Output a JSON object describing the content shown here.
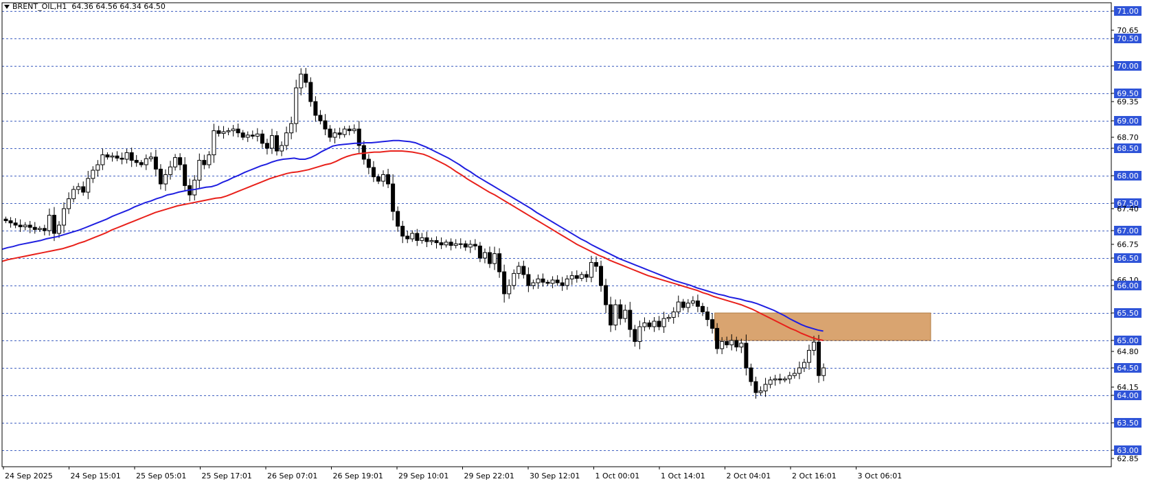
{
  "header": {
    "menu_icon": "triangle-down-icon",
    "symbol_line": "BRENT_OIL,H1",
    "ohlc_line": "64.36 64.56 64.34 64.50"
  },
  "colors": {
    "background": "#ffffff",
    "grid_line": "#4060c0",
    "bull_candle": "#ffffff",
    "bear_candle": "#000000",
    "ma_blue": "#1f1fe0",
    "ma_red": "#e8201a",
    "zone": "#d9a470",
    "price_badge": "#2f54d8"
  },
  "chart_data": {
    "type": "candlestick",
    "title": "BRENT_OIL,H1",
    "ylim": [
      62.7,
      71.15
    ],
    "grid": true,
    "price_levels_highlighted": [
      71.0,
      70.5,
      70.0,
      69.5,
      69.0,
      68.5,
      68.0,
      67.5,
      67.0,
      66.5,
      66.0,
      65.5,
      65.0,
      64.5,
      64.0,
      63.5,
      63.0
    ],
    "y_tick_labels": [
      "71.00",
      "70.65",
      "70.50",
      "70.00",
      "69.50",
      "69.35",
      "69.00",
      "68.70",
      "68.50",
      "68.00",
      "67.50",
      "67.40",
      "67.00",
      "66.75",
      "66.50",
      "66.10",
      "66.00",
      "65.50",
      "65.00",
      "64.80",
      "64.50",
      "64.15",
      "64.00",
      "63.50",
      "63.00",
      "62.85"
    ],
    "x_tick_labels": [
      "24 Sep 2025",
      "24 Sep 15:01",
      "25 Sep 05:01",
      "25 Sep 17:01",
      "26 Sep 07:01",
      "26 Sep 19:01",
      "29 Sep 10:01",
      "29 Sep 22:01",
      "30 Sep 12:01",
      "1 Oct 00:01",
      "1 Oct 14:01",
      "2 Oct 04:01",
      "2 Oct 16:01",
      "3 Oct 06:01"
    ],
    "candles_close": [
      67.18,
      67.14,
      67.1,
      67.07,
      67.1,
      67.06,
      67.02,
      67.04,
      67.0,
      67.28,
      66.95,
      67.1,
      67.4,
      67.58,
      67.75,
      67.8,
      67.7,
      67.95,
      68.1,
      68.2,
      68.38,
      68.34,
      68.36,
      68.32,
      68.3,
      68.42,
      68.28,
      68.24,
      68.2,
      68.31,
      68.34,
      68.12,
      67.85,
      68.02,
      68.16,
      68.33,
      68.2,
      67.82,
      67.65,
      67.92,
      68.28,
      68.2,
      68.38,
      68.82,
      68.77,
      68.8,
      68.82,
      68.85,
      68.78,
      68.7,
      68.74,
      68.72,
      68.76,
      68.59,
      68.5,
      68.73,
      68.45,
      68.55,
      68.78,
      68.95,
      69.6,
      69.85,
      69.7,
      69.35,
      69.1,
      69.0,
      68.85,
      68.7,
      68.78,
      68.75,
      68.85,
      68.82,
      68.85,
      68.55,
      68.3,
      68.15,
      67.98,
      67.9,
      68.02,
      67.85,
      67.35,
      67.08,
      66.9,
      66.85,
      66.95,
      66.82,
      66.87,
      66.8,
      66.82,
      66.78,
      66.74,
      66.79,
      66.73,
      66.76,
      66.76,
      66.7,
      66.75,
      66.72,
      66.5,
      66.6,
      66.4,
      66.58,
      66.25,
      65.85,
      66.0,
      66.22,
      66.35,
      66.2,
      66.0,
      66.05,
      66.12,
      66.06,
      66.04,
      66.1,
      66.05,
      66.0,
      66.12,
      66.18,
      66.13,
      66.2,
      66.15,
      66.42,
      66.35,
      66.0,
      65.65,
      65.28,
      65.65,
      65.4,
      65.55,
      65.2,
      64.98,
      65.25,
      65.32,
      65.25,
      65.35,
      65.25,
      65.4,
      65.42,
      65.52,
      65.7,
      65.6,
      65.68,
      65.72,
      65.62,
      65.52,
      65.38,
      65.22,
      64.85,
      64.98,
      64.92,
      65.0,
      64.88,
      64.95,
      64.5,
      64.25,
      64.05,
      64.08,
      64.2,
      64.28,
      64.3,
      64.28,
      64.3,
      64.36,
      64.4,
      64.5,
      64.6,
      64.82,
      64.97,
      64.36,
      64.5
    ],
    "series": [
      {
        "values": [
          66.66,
          66.69,
          66.71,
          66.74,
          66.76,
          66.78,
          66.8,
          66.82,
          66.85,
          66.87,
          66.89,
          66.92,
          66.95,
          66.98,
          67.01,
          67.05,
          67.09,
          67.13,
          67.17,
          67.21,
          67.26,
          67.3,
          67.34,
          67.38,
          67.43,
          67.47,
          67.51,
          67.54,
          67.58,
          67.61,
          67.65,
          67.67,
          67.7,
          67.72,
          67.74,
          67.75,
          67.77,
          67.79,
          67.8,
          67.83,
          67.88,
          67.92,
          67.97,
          68.01,
          68.06,
          68.1,
          68.14,
          68.18,
          68.21,
          68.25,
          68.28,
          68.3,
          68.31,
          68.32,
          68.3,
          68.3,
          68.33,
          68.38,
          68.44,
          68.49,
          68.54,
          68.56,
          68.57,
          68.58,
          68.59,
          68.59,
          68.6,
          68.6,
          68.61,
          68.62,
          68.63,
          68.64,
          68.64,
          68.63,
          68.62,
          68.6,
          68.56,
          68.52,
          68.47,
          68.42,
          68.37,
          68.32,
          68.26,
          68.2,
          68.13,
          68.07,
          68.0,
          67.94,
          67.88,
          67.82,
          67.76,
          67.7,
          67.64,
          67.58,
          67.52,
          67.46,
          67.4,
          67.33,
          67.27,
          67.21,
          67.15,
          67.09,
          67.03,
          66.97,
          66.91,
          66.85,
          66.8,
          66.74,
          66.69,
          66.64,
          66.59,
          66.54,
          66.49,
          66.45,
          66.41,
          66.37,
          66.33,
          66.29,
          66.25,
          66.21,
          66.17,
          66.13,
          66.09,
          66.06,
          66.03,
          66.0,
          65.96,
          65.93,
          65.9,
          65.87,
          65.84,
          65.82,
          65.79,
          65.77,
          65.75,
          65.72,
          65.7,
          65.67,
          65.63,
          65.59,
          65.55,
          65.5,
          65.45,
          65.39,
          65.34,
          65.29,
          65.25,
          65.22,
          65.19,
          65.17
        ]
      },
      {
        "values": [
          66.44,
          66.47,
          66.49,
          66.51,
          66.53,
          66.55,
          66.57,
          66.59,
          66.61,
          66.63,
          66.65,
          66.67,
          66.7,
          66.73,
          66.77,
          66.8,
          66.84,
          66.88,
          66.92,
          66.96,
          67.01,
          67.05,
          67.09,
          67.13,
          67.17,
          67.21,
          67.25,
          67.29,
          67.33,
          67.36,
          67.39,
          67.42,
          67.45,
          67.47,
          67.49,
          67.51,
          67.53,
          67.55,
          67.57,
          67.59,
          67.6,
          67.63,
          67.67,
          67.71,
          67.75,
          67.79,
          67.83,
          67.87,
          67.91,
          67.95,
          67.98,
          68.01,
          68.04,
          68.06,
          68.07,
          68.09,
          68.11,
          68.14,
          68.17,
          68.2,
          68.22,
          68.26,
          68.31,
          68.35,
          68.38,
          68.4,
          68.41,
          68.42,
          68.43,
          68.43,
          68.44,
          68.45,
          68.45,
          68.45,
          68.44,
          68.43,
          68.41,
          68.39,
          68.35,
          68.3,
          68.25,
          68.2,
          68.14,
          68.07,
          68.01,
          67.94,
          67.88,
          67.82,
          67.76,
          67.7,
          67.65,
          67.59,
          67.53,
          67.47,
          67.41,
          67.35,
          67.29,
          67.23,
          67.17,
          67.11,
          67.05,
          66.99,
          66.93,
          66.87,
          66.81,
          66.75,
          66.7,
          66.65,
          66.6,
          66.55,
          66.51,
          66.46,
          66.42,
          66.38,
          66.34,
          66.3,
          66.26,
          66.22,
          66.18,
          66.15,
          66.12,
          66.09,
          66.06,
          66.03,
          66.0,
          65.97,
          65.94,
          65.91,
          65.87,
          65.84,
          65.8,
          65.77,
          65.74,
          65.71,
          65.68,
          65.65,
          65.61,
          65.57,
          65.52,
          65.47,
          65.42,
          65.37,
          65.32,
          65.27,
          65.22,
          65.18,
          65.13,
          65.09,
          65.05,
          65.02,
          65.0
        ]
      }
    ],
    "zone": {
      "price_low": 65.0,
      "price_high": 65.5
    }
  }
}
